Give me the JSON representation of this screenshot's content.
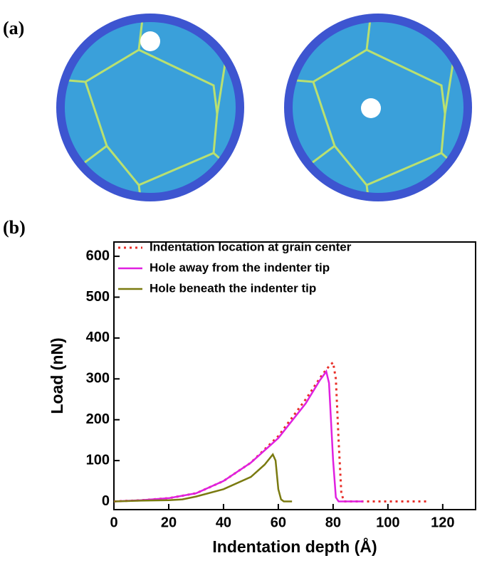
{
  "panel_a_label": "(a)",
  "panel_b_label": "(b)",
  "chart_data": {
    "type": "line",
    "xlabel": "Indentation depth (Å)",
    "ylabel": "Load (nN)",
    "xlim": [
      0,
      132
    ],
    "ylim": [
      -20,
      635
    ],
    "xticks": [
      0,
      20,
      40,
      60,
      80,
      100,
      120
    ],
    "yticks": [
      0,
      100,
      200,
      300,
      400,
      500,
      600
    ],
    "legend": "upper left",
    "series": [
      {
        "name": "Indentation location at grain center",
        "color": "#e8302a",
        "style": "dotted",
        "x": [
          0,
          10,
          20,
          30,
          40,
          50,
          60,
          70,
          76,
          79,
          80,
          81,
          82,
          83,
          84,
          100,
          115
        ],
        "values": [
          0,
          3,
          8,
          20,
          50,
          95,
          160,
          250,
          310,
          335,
          340,
          300,
          150,
          20,
          0,
          0,
          0
        ]
      },
      {
        "name": "Hole away from the indenter tip",
        "color": "#e020e0",
        "style": "solid",
        "x": [
          0,
          10,
          20,
          30,
          40,
          50,
          60,
          70,
          75,
          77.5,
          78.5,
          80,
          81,
          82,
          91
        ],
        "values": [
          0,
          3,
          8,
          20,
          50,
          95,
          155,
          240,
          295,
          318,
          290,
          100,
          10,
          0,
          0
        ]
      },
      {
        "name": "Hole beneath the indenter tip",
        "color": "#7a7a10",
        "style": "solid",
        "x": [
          0,
          10,
          20,
          25,
          30,
          40,
          50,
          55,
          58,
          59,
          60,
          61,
          62,
          65
        ],
        "values": [
          0,
          2,
          3,
          5,
          12,
          30,
          60,
          90,
          115,
          100,
          30,
          5,
          0,
          0
        ]
      }
    ]
  }
}
